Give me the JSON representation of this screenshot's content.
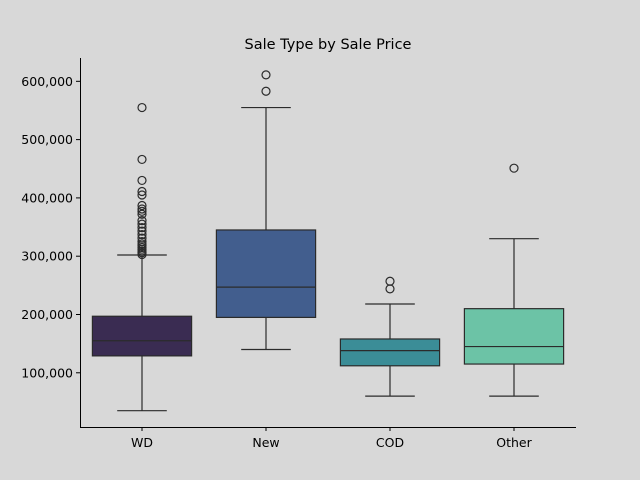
{
  "chart_data": {
    "type": "box",
    "title": "Sale Type by Sale Price",
    "xlabel": "",
    "ylabel": "",
    "categories": [
      "WD",
      "New",
      "COD",
      "Other"
    ],
    "y_ticks": [
      100000,
      200000,
      300000,
      400000,
      500000,
      600000
    ],
    "y_tick_labels": [
      "100,000",
      "200,000",
      "300,000",
      "400,000",
      "500,000",
      "600,000"
    ],
    "ylim": [
      7000,
      640000
    ],
    "grid": false,
    "boxes": [
      {
        "category": "WD",
        "color": "#3a2c52",
        "min": 35000,
        "q1": 129000,
        "median": 155000,
        "q3": 197000,
        "max": 302000,
        "outliers": [
          555000,
          466000,
          430000,
          411000,
          405000,
          387000,
          381000,
          377000,
          372000,
          361000,
          355000,
          349000,
          343000,
          337000,
          331000,
          325000,
          321000,
          318000,
          315000,
          312000,
          309000,
          306000,
          303000
        ]
      },
      {
        "category": "New",
        "color": "#425e8e",
        "min": 140000,
        "q1": 195000,
        "median": 247000,
        "q3": 345000,
        "max": 555000,
        "outliers": [
          611000,
          583000
        ]
      },
      {
        "category": "COD",
        "color": "#3b8d97",
        "min": 60000,
        "q1": 112000,
        "median": 138000,
        "q3": 158000,
        "max": 218000,
        "outliers": [
          257000,
          244000
        ]
      },
      {
        "category": "Other",
        "color": "#6cc3a6",
        "min": 60000,
        "q1": 115000,
        "median": 145000,
        "q3": 210000,
        "max": 330000,
        "outliers": [
          451000
        ]
      }
    ]
  }
}
